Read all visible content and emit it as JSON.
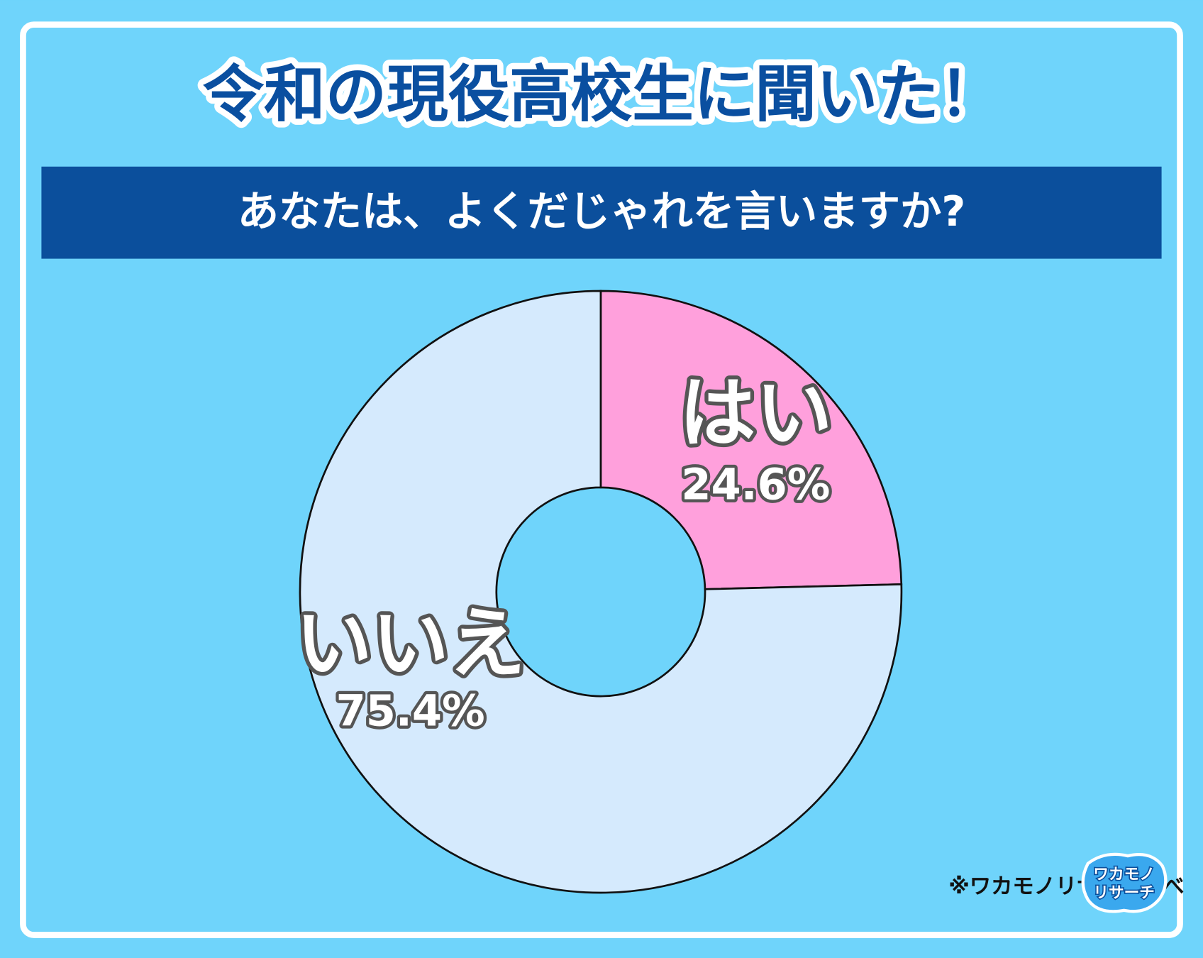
{
  "chart_data": {
    "type": "donut",
    "title": "令和の現役高校生に聞いた！",
    "subtitle": "あなたは、よくだじゃれを言いますか?",
    "categories": [
      "はい",
      "いいえ"
    ],
    "values": [
      24.6,
      75.4
    ],
    "value_labels": [
      "24.6%",
      "75.4%"
    ],
    "colors": [
      "#ffa0dc",
      "#d5eafd"
    ],
    "source": "※ワカモノリサーチ調べ",
    "logo": [
      "ワカモノ",
      "リサーチ"
    ]
  }
}
